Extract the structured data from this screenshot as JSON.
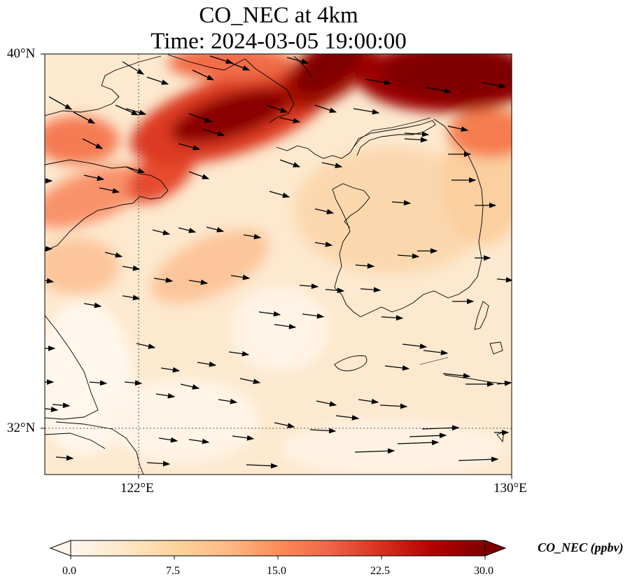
{
  "title": {
    "line1": "CO_NEC at 4km",
    "line2": "Time: 2024-03-05 19:00:00"
  },
  "axes": {
    "lat_labels": [
      "40°N",
      "32°N"
    ],
    "lon_labels": [
      "122°E",
      "130°E"
    ]
  },
  "colorbar": {
    "label": "CO_NEC (ppbv)",
    "ticks": [
      "0.0",
      "7.5",
      "15.0",
      "22.5",
      "30.0"
    ],
    "range": [
      0,
      30
    ],
    "extend": "both",
    "colormap": [
      "#fff7ec",
      "#fee8c8",
      "#fdd49e",
      "#fdbb84",
      "#fc8d59",
      "#ef6548",
      "#d7301f",
      "#b30000",
      "#7f0000"
    ]
  },
  "map_data": {
    "type": "field_with_wind_vectors",
    "lon_range": [
      120,
      130
    ],
    "lat_range": [
      31,
      40
    ],
    "features": [
      "coastline",
      "gridlines"
    ],
    "hotspots": [
      {
        "region": "northern Bohai / Liaodong",
        "level": "high"
      },
      {
        "region": "North Korea northeast",
        "level": "high"
      },
      {
        "region": "Shandong peninsula",
        "level": "elevated"
      }
    ]
  }
}
